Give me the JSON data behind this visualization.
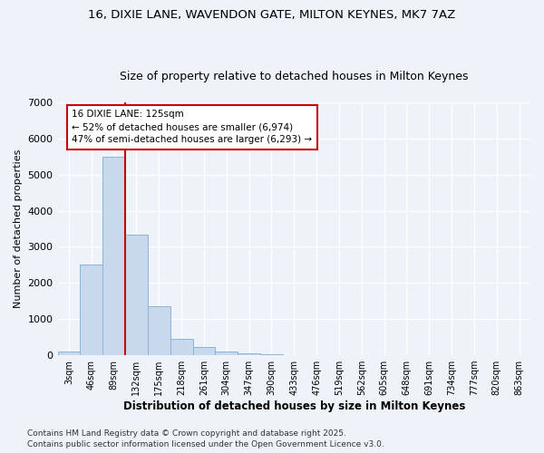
{
  "title_line1": "16, DIXIE LANE, WAVENDON GATE, MILTON KEYNES, MK7 7AZ",
  "title_line2": "Size of property relative to detached houses in Milton Keynes",
  "xlabel": "Distribution of detached houses by size in Milton Keynes",
  "ylabel": "Number of detached properties",
  "categories": [
    "3sqm",
    "46sqm",
    "89sqm",
    "132sqm",
    "175sqm",
    "218sqm",
    "261sqm",
    "304sqm",
    "347sqm",
    "390sqm",
    "433sqm",
    "476sqm",
    "519sqm",
    "562sqm",
    "605sqm",
    "648sqm",
    "691sqm",
    "734sqm",
    "777sqm",
    "820sqm",
    "863sqm"
  ],
  "values": [
    100,
    2500,
    5500,
    3350,
    1350,
    450,
    220,
    100,
    50,
    20,
    5,
    0,
    0,
    0,
    0,
    0,
    0,
    0,
    0,
    0,
    0
  ],
  "bar_color": "#c8d9ed",
  "bar_edge_color": "#8ab4d4",
  "vline_x_idx": 2.5,
  "vline_color": "#cc0000",
  "annotation_title": "16 DIXIE LANE: 125sqm",
  "annotation_line1": "← 52% of detached houses are smaller (6,974)",
  "annotation_line2": "47% of semi-detached houses are larger (6,293) →",
  "annotation_box_color": "#cc0000",
  "ylim": [
    0,
    7000
  ],
  "yticks": [
    0,
    1000,
    2000,
    3000,
    4000,
    5000,
    6000,
    7000
  ],
  "footer_line1": "Contains HM Land Registry data © Crown copyright and database right 2025.",
  "footer_line2": "Contains public sector information licensed under the Open Government Licence v3.0.",
  "background_color": "#eef2f9",
  "grid_color": "#ffffff"
}
